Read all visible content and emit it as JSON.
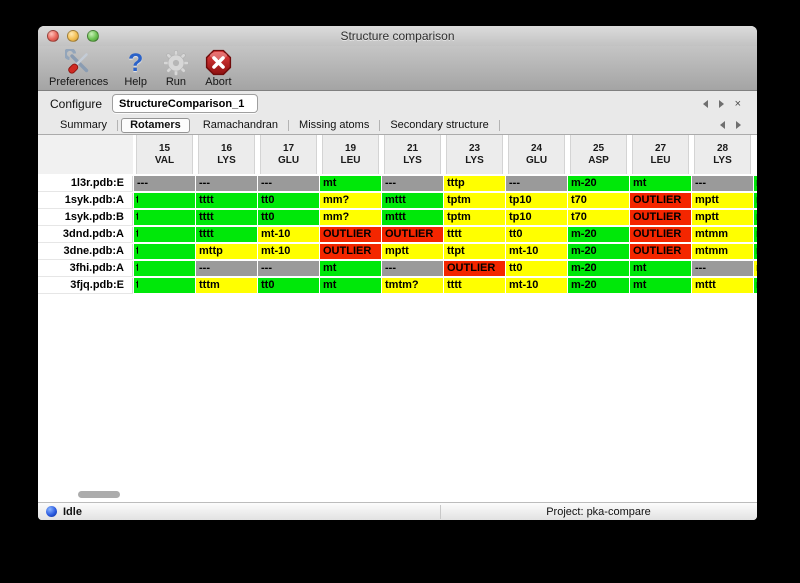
{
  "window": {
    "title": "Structure comparison"
  },
  "toolbar": {
    "items": [
      {
        "label": "Preferences",
        "icon": "tools-icon"
      },
      {
        "label": "Help",
        "icon": "help-icon",
        "glyph": "?"
      },
      {
        "label": "Run",
        "icon": "gear-icon"
      },
      {
        "label": "Abort",
        "icon": "abort-icon"
      }
    ]
  },
  "configure": {
    "label": "Configure",
    "value": "StructureComparison_1",
    "close_glyph": "×"
  },
  "tabs": {
    "items": [
      "Summary",
      "Rotamers",
      "Ramachandran",
      "Missing atoms",
      "Secondary structure"
    ],
    "selected": "Rotamers"
  },
  "table": {
    "colors": {
      "green": "#00e809",
      "yellow": "#ffff00",
      "red": "#f42600",
      "gray": "#9a9a9a"
    },
    "columns": [
      {
        "number": "15",
        "residue": "VAL"
      },
      {
        "number": "16",
        "residue": "LYS"
      },
      {
        "number": "17",
        "residue": "GLU"
      },
      {
        "number": "19",
        "residue": "LEU"
      },
      {
        "number": "21",
        "residue": "LYS"
      },
      {
        "number": "23",
        "residue": "LYS"
      },
      {
        "number": "24",
        "residue": "GLU"
      },
      {
        "number": "25",
        "residue": "ASP"
      },
      {
        "number": "27",
        "residue": "LEU"
      },
      {
        "number": "28",
        "residue": "LYS"
      }
    ],
    "rows": [
      {
        "label": "1l3r.pdb:E",
        "cells": [
          {
            "text": "---",
            "status": "gray"
          },
          {
            "text": "---",
            "status": "gray"
          },
          {
            "text": "---",
            "status": "gray"
          },
          {
            "text": "mt",
            "status": "green"
          },
          {
            "text": "---",
            "status": "gray"
          },
          {
            "text": "tttp",
            "status": "yellow"
          },
          {
            "text": "---",
            "status": "gray"
          },
          {
            "text": "m-20",
            "status": "green"
          },
          {
            "text": "mt",
            "status": "green"
          },
          {
            "text": "---",
            "status": "gray"
          }
        ],
        "overflow": {
          "text": "m",
          "status": "green",
          "clipped": true
        }
      },
      {
        "label": "1syk.pdb:A",
        "cells": [
          {
            "text": "t",
            "status": "green",
            "clipped": true
          },
          {
            "text": "tttt",
            "status": "green"
          },
          {
            "text": "tt0",
            "status": "green"
          },
          {
            "text": "mm?",
            "status": "yellow"
          },
          {
            "text": "mttt",
            "status": "green"
          },
          {
            "text": "tptm",
            "status": "yellow"
          },
          {
            "text": "tp10",
            "status": "yellow"
          },
          {
            "text": "t70",
            "status": "yellow"
          },
          {
            "text": "OUTLIER",
            "status": "red"
          },
          {
            "text": "mptt",
            "status": "yellow"
          }
        ],
        "overflow": {
          "text": "m",
          "status": "green",
          "clipped": true
        }
      },
      {
        "label": "1syk.pdb:B",
        "cells": [
          {
            "text": "t",
            "status": "green",
            "clipped": true
          },
          {
            "text": "tttt",
            "status": "green"
          },
          {
            "text": "tt0",
            "status": "green"
          },
          {
            "text": "mm?",
            "status": "yellow"
          },
          {
            "text": "mttt",
            "status": "green"
          },
          {
            "text": "tptm",
            "status": "yellow"
          },
          {
            "text": "tp10",
            "status": "yellow"
          },
          {
            "text": "t70",
            "status": "yellow"
          },
          {
            "text": "OUTLIER",
            "status": "red"
          },
          {
            "text": "mptt",
            "status": "yellow"
          }
        ],
        "overflow": {
          "text": "m",
          "status": "green",
          "clipped": true
        }
      },
      {
        "label": "3dnd.pdb:A",
        "cells": [
          {
            "text": "t",
            "status": "green",
            "clipped": true
          },
          {
            "text": "tttt",
            "status": "green"
          },
          {
            "text": "mt-10",
            "status": "yellow"
          },
          {
            "text": "OUTLIER",
            "status": "red"
          },
          {
            "text": "OUTLIER",
            "status": "red"
          },
          {
            "text": "tttt",
            "status": "yellow"
          },
          {
            "text": "tt0",
            "status": "yellow"
          },
          {
            "text": "m-20",
            "status": "green"
          },
          {
            "text": "OUTLIER",
            "status": "red"
          },
          {
            "text": "mtmm",
            "status": "yellow"
          }
        ],
        "overflow": {
          "text": "m",
          "status": "green",
          "clipped": true
        }
      },
      {
        "label": "3dne.pdb:A",
        "cells": [
          {
            "text": "t",
            "status": "green",
            "clipped": true
          },
          {
            "text": "mttp",
            "status": "yellow"
          },
          {
            "text": "mt-10",
            "status": "yellow"
          },
          {
            "text": "OUTLIER",
            "status": "red"
          },
          {
            "text": "mptt",
            "status": "yellow"
          },
          {
            "text": "ttpt",
            "status": "yellow"
          },
          {
            "text": "mt-10",
            "status": "yellow"
          },
          {
            "text": "m-20",
            "status": "green"
          },
          {
            "text": "OUTLIER",
            "status": "red"
          },
          {
            "text": "mtmm",
            "status": "yellow"
          }
        ],
        "overflow": {
          "text": "m",
          "status": "green",
          "clipped": true
        }
      },
      {
        "label": "3fhi.pdb:A",
        "cells": [
          {
            "text": "t",
            "status": "green",
            "clipped": true
          },
          {
            "text": "---",
            "status": "gray"
          },
          {
            "text": "---",
            "status": "gray"
          },
          {
            "text": "mt",
            "status": "green"
          },
          {
            "text": "---",
            "status": "gray"
          },
          {
            "text": "OUTLIER",
            "status": "red"
          },
          {
            "text": "tt0",
            "status": "yellow"
          },
          {
            "text": "m-20",
            "status": "green"
          },
          {
            "text": "mt",
            "status": "green"
          },
          {
            "text": "---",
            "status": "gray"
          }
        ],
        "overflow": {
          "text": "m",
          "status": "yellow",
          "clipped": true
        }
      },
      {
        "label": "3fjq.pdb:E",
        "cells": [
          {
            "text": "t",
            "status": "green",
            "clipped": true
          },
          {
            "text": "tttm",
            "status": "yellow"
          },
          {
            "text": "tt0",
            "status": "green"
          },
          {
            "text": "mt",
            "status": "green"
          },
          {
            "text": "tmtm?",
            "status": "yellow"
          },
          {
            "text": "tttt",
            "status": "yellow"
          },
          {
            "text": "mt-10",
            "status": "yellow"
          },
          {
            "text": "m-20",
            "status": "green"
          },
          {
            "text": "mt",
            "status": "green"
          },
          {
            "text": "mttt",
            "status": "yellow"
          }
        ],
        "overflow": {
          "text": "m",
          "status": "green",
          "clipped": true
        }
      }
    ]
  },
  "statusbar": {
    "state": "Idle",
    "project_label": "Project: pka-compare"
  }
}
